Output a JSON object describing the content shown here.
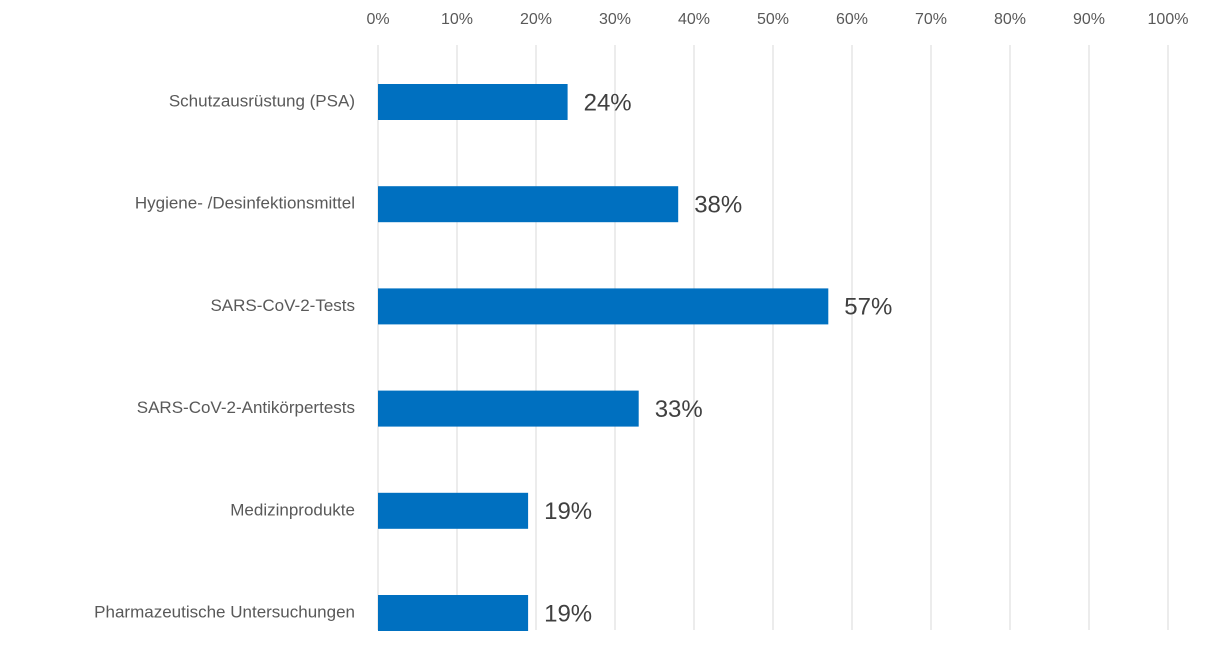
{
  "chart_data": {
    "type": "bar",
    "orientation": "horizontal",
    "categories": [
      "Schutzausrüstung (PSA)",
      "Hygiene- /Desinfektionsmittel",
      "SARS-CoV-2-Tests",
      "SARS-CoV-2-Antikörpertests",
      "Medizinprodukte",
      "Pharmazeutische Untersuchungen"
    ],
    "values": [
      24,
      38,
      57,
      33,
      19,
      19
    ],
    "value_labels": [
      "24%",
      "38%",
      "57%",
      "33%",
      "19%",
      "19%"
    ],
    "color": "#0070c0",
    "xlim": [
      0,
      100
    ],
    "xticks": [
      {
        "value": 0,
        "label": "0%"
      },
      {
        "value": 10,
        "label": "10%"
      },
      {
        "value": 20,
        "label": "20%"
      },
      {
        "value": 30,
        "label": "30%"
      },
      {
        "value": 40,
        "label": "40%"
      },
      {
        "value": 50,
        "label": "50%"
      },
      {
        "value": 60,
        "label": "60%"
      },
      {
        "value": 70,
        "label": "70%"
      },
      {
        "value": 80,
        "label": "80%"
      },
      {
        "value": 90,
        "label": "90%"
      },
      {
        "value": 100,
        "label": "100%"
      }
    ],
    "grid": true
  }
}
